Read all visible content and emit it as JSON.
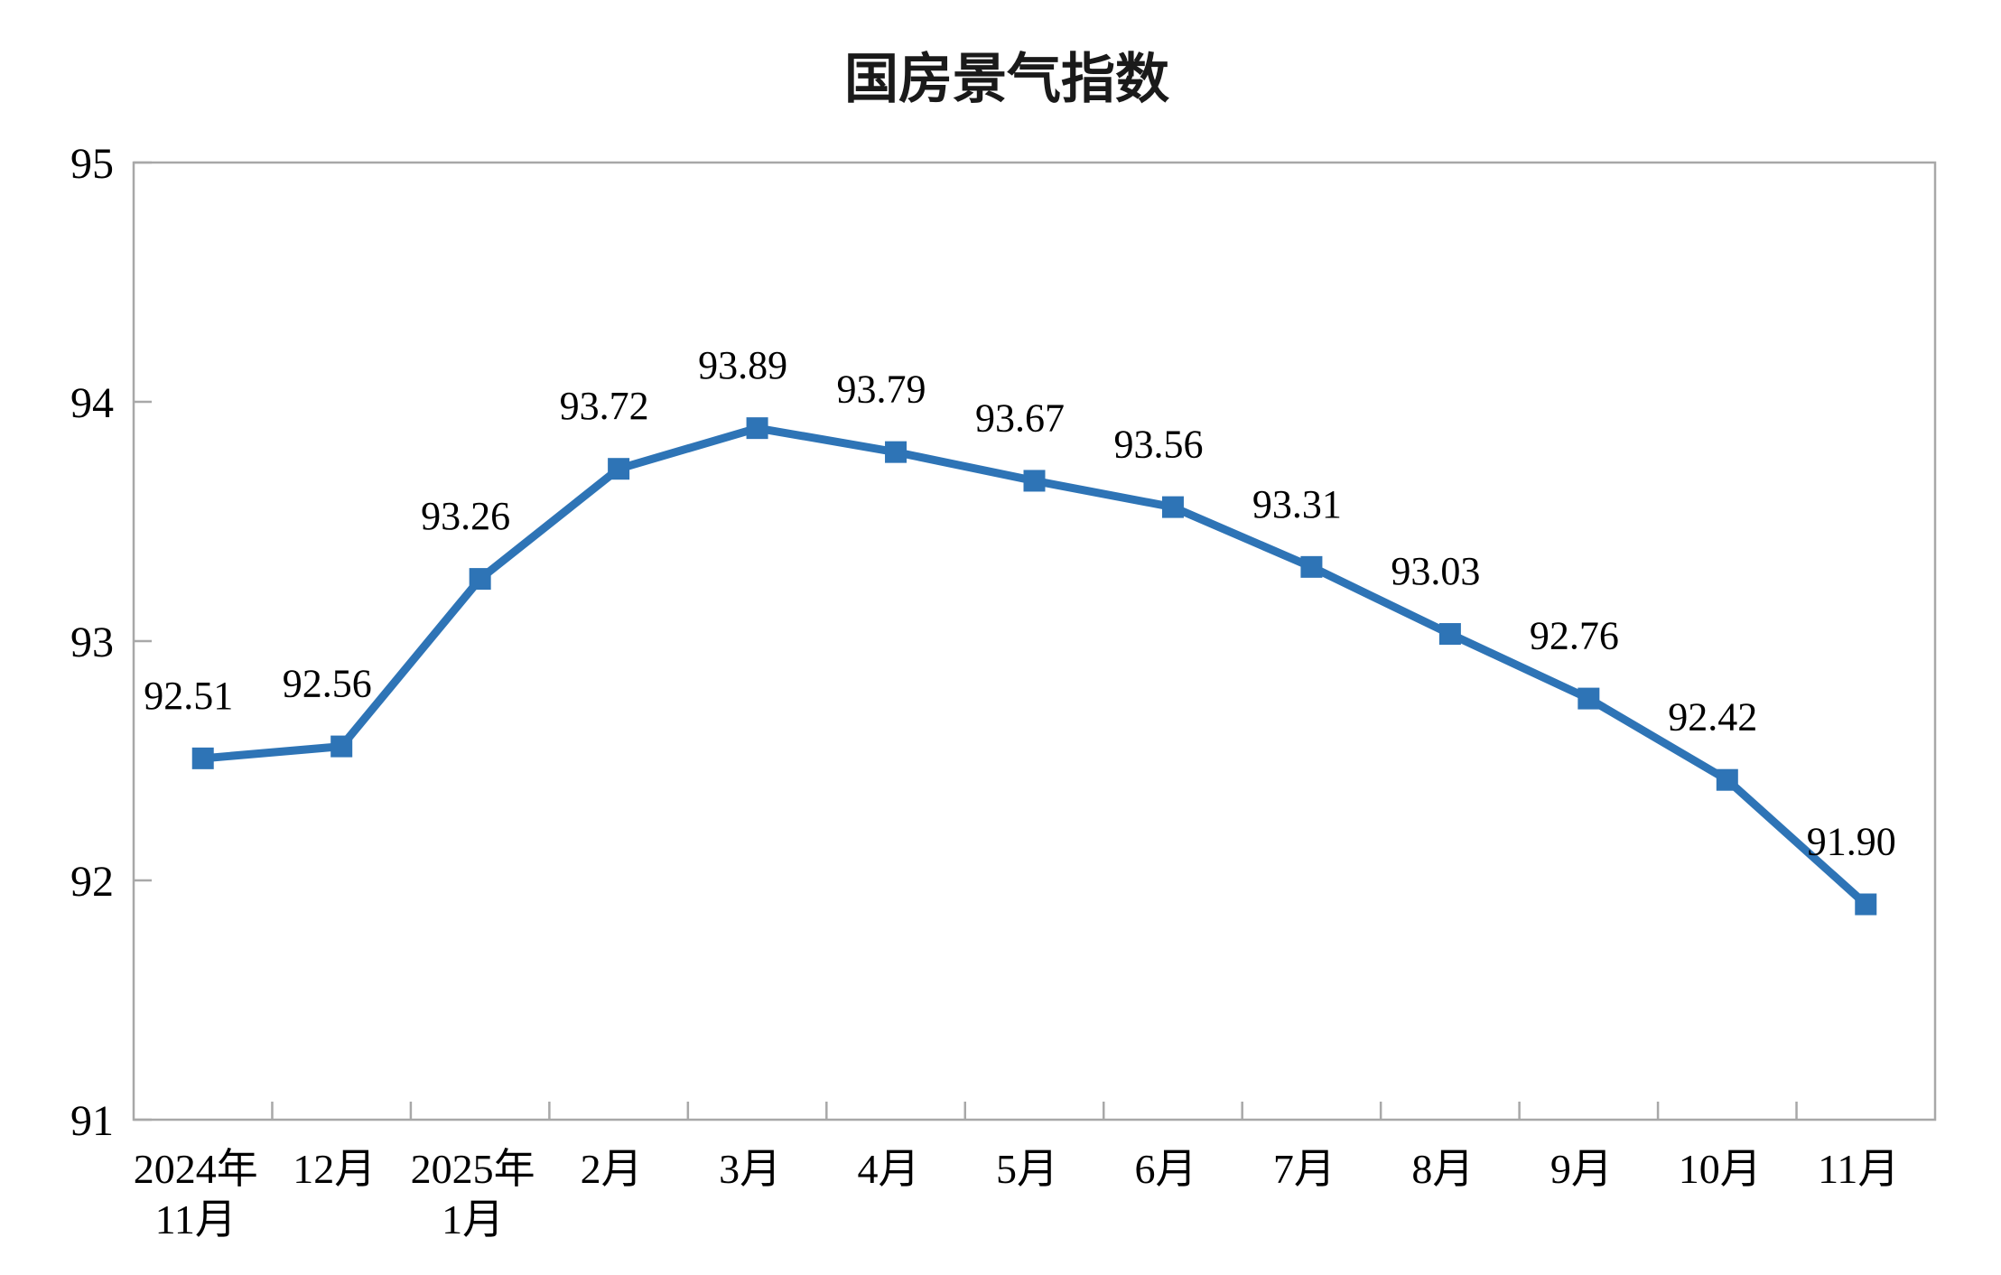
{
  "chart_data": {
    "type": "line",
    "title": "国房景气指数",
    "categories": [
      "2024年\n11月",
      "12月",
      "2025年\n1月",
      "2月",
      "3月",
      "4月",
      "5月",
      "6月",
      "7月",
      "8月",
      "9月",
      "10月",
      "11月"
    ],
    "values": [
      92.51,
      92.56,
      93.26,
      93.72,
      93.89,
      93.79,
      93.67,
      93.56,
      93.31,
      93.03,
      92.76,
      92.42,
      91.9
    ],
    "data_labels": [
      "92.51",
      "92.56",
      "93.26",
      "93.72",
      "93.89",
      "93.79",
      "93.67",
      "93.56",
      "93.31",
      "93.03",
      "92.76",
      "92.42",
      "91.90"
    ],
    "xlabel": "",
    "ylabel": "",
    "ylim": [
      91,
      95
    ],
    "yticks": [
      "95",
      "94",
      "93",
      "92",
      "91"
    ],
    "ytick_values": [
      95,
      94,
      93,
      92,
      91
    ],
    "grid": false,
    "legend_position": "none",
    "line_color": "#2E74B6",
    "marker_shape": "square",
    "axis_color": "#A8A8A8",
    "text_color": "#000000",
    "background_color": "#FFFFFF"
  }
}
